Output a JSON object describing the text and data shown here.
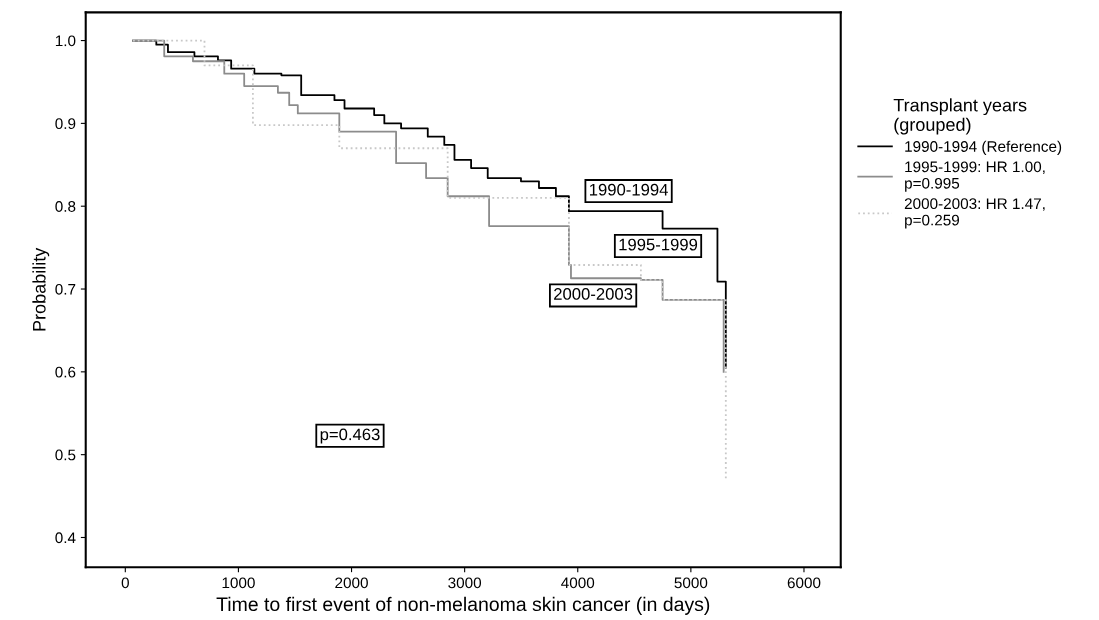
{
  "chart_data": {
    "type": "step",
    "xlabel": "Time to first event of non-melanoma skin cancer (in days)",
    "ylabel": "Probability",
    "legend_title": "Transplant years\n(grouped)",
    "xlim": [
      -350,
      6325
    ],
    "xticks": [
      0,
      1000,
      2000,
      3000,
      4000,
      5000,
      6000
    ],
    "ylim": [
      0.364,
      1.034
    ],
    "yticks": [
      {
        "value": 0.4,
        "label": "0.4"
      },
      {
        "value": 0.5,
        "label": "0.5"
      },
      {
        "value": 0.6,
        "label": "0.6"
      },
      {
        "value": 0.7,
        "label": "0.7"
      },
      {
        "value": 0.8,
        "label": "0.8"
      },
      {
        "value": 0.9,
        "label": "0.9"
      },
      {
        "value": 1.0,
        "label": "1.0"
      }
    ],
    "grid": false,
    "legend": "right",
    "marker": "none",
    "series": [
      {
        "name": "1990-1994 (Reference)",
        "color": "#000000",
        "line_style": "solid",
        "x": [
          68,
          274,
          377,
          611,
          819,
          936,
          1141,
          1380,
          1555,
          1849,
          1938,
          2200,
          2290,
          2438,
          2674,
          2820,
          2910,
          3057,
          3204,
          3498,
          3657,
          3807,
          3922,
          4750,
          5235,
          5309
        ],
        "values": [
          1.0,
          0.995,
          0.986,
          0.981,
          0.976,
          0.966,
          0.96,
          0.958,
          0.934,
          0.928,
          0.918,
          0.91,
          0.9,
          0.894,
          0.884,
          0.874,
          0.856,
          0.846,
          0.834,
          0.83,
          0.822,
          0.812,
          0.794,
          0.773,
          0.709,
          0.605
        ]
      },
      {
        "name": "1995-1999: HR 1.00,\np=0.995",
        "color": "#8c8c8c",
        "line_style": "solid",
        "x": [
          68,
          344,
          598,
          875,
          1051,
          1349,
          1449,
          1525,
          1892,
          2394,
          2659,
          2850,
          3216,
          3922,
          3940,
          4558,
          4750,
          5203,
          5290
        ],
        "values": [
          1.0,
          0.981,
          0.975,
          0.96,
          0.945,
          0.937,
          0.922,
          0.912,
          0.89,
          0.852,
          0.834,
          0.812,
          0.776,
          0.729,
          0.713,
          0.711,
          0.687,
          0.687,
          0.6
        ]
      },
      {
        "name": "2000-2003: HR 1.47,\np=0.259",
        "color": "#c8c8c8",
        "line_style": "dotted",
        "x": [
          68,
          700,
          1128,
          1892,
          2850,
          3922,
          4558,
          4750,
          5309
        ],
        "values": [
          1.0,
          0.97,
          0.898,
          0.87,
          0.81,
          0.729,
          0.711,
          0.687,
          0.47
        ]
      }
    ],
    "annotations": [
      "1990-1994",
      "1995-1999",
      "2000-2003",
      "p=0.463"
    ]
  }
}
